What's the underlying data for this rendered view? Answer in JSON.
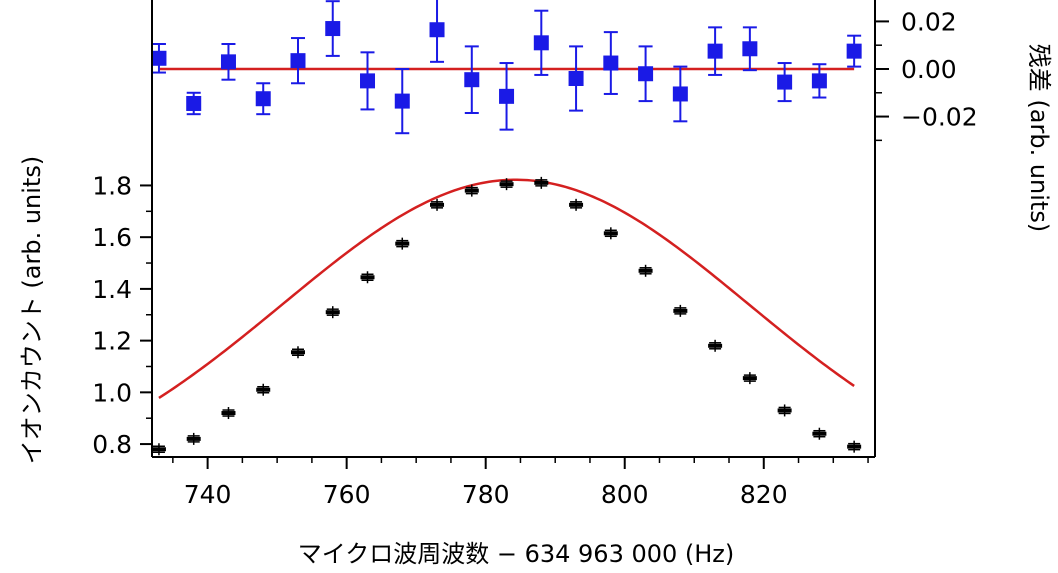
{
  "chart_data": [
    {
      "panel": "residual",
      "type": "scatter",
      "ylabel": "残差 (arb. units)",
      "ylim": [
        -0.037,
        0.029
      ],
      "yticks": [
        0.02,
        0.0,
        -0.02
      ],
      "ytick_labels": [
        "0.02",
        "0.00",
        "−0.02"
      ],
      "y_axis_side": "right",
      "x": [
        733,
        738,
        743,
        748,
        753,
        758,
        763,
        768,
        773,
        778,
        783,
        788,
        793,
        798,
        803,
        808,
        813,
        818,
        823,
        828,
        833
      ],
      "series": [
        {
          "marker": "square",
          "color": "#1a1ae6",
          "values": [
            0.0045,
            -0.0145,
            0.003,
            -0.0125,
            0.0035,
            0.017,
            -0.005,
            -0.0135,
            0.0165,
            -0.0045,
            -0.0115,
            0.011,
            -0.004,
            0.0025,
            -0.002,
            -0.0105,
            0.0075,
            0.0085,
            -0.0055,
            -0.005,
            0.0075
          ],
          "errors": [
            0.006,
            0.0045,
            0.0075,
            0.0065,
            0.0095,
            0.0115,
            0.012,
            0.0135,
            0.0135,
            0.014,
            0.014,
            0.0135,
            0.0135,
            0.013,
            0.0115,
            0.0115,
            0.01,
            0.009,
            0.008,
            0.007,
            0.0065
          ]
        },
        {
          "type": "line",
          "color": "#d42020",
          "x": [
            733,
            833
          ],
          "values": [
            0,
            0
          ]
        }
      ]
    },
    {
      "panel": "main",
      "type": "scatter",
      "xlabel": "マイクロ波周波数 − 634 963 000 (Hz)",
      "ylabel": "イオンカウント (arb. units)",
      "xlim": [
        732,
        836
      ],
      "ylim": [
        0.75,
        1.91
      ],
      "xticks": [
        740,
        760,
        780,
        800,
        820
      ],
      "xtick_labels": [
        "740",
        "760",
        "780",
        "800",
        "820"
      ],
      "yticks": [
        0.8,
        1.0,
        1.2,
        1.4,
        1.6,
        1.8
      ],
      "ytick_labels": [
        "0.8",
        "1.0",
        "1.2",
        "1.4",
        "1.6",
        "1.8"
      ],
      "x": [
        733,
        738,
        743,
        748,
        753,
        758,
        763,
        768,
        773,
        778,
        783,
        788,
        793,
        798,
        803,
        808,
        813,
        818,
        823,
        828,
        833
      ],
      "series": [
        {
          "marker": "cross-with-errorbar",
          "color": "#000000",
          "values": [
            0.78,
            0.82,
            0.92,
            1.01,
            1.155,
            1.31,
            1.445,
            1.575,
            1.725,
            1.78,
            1.805,
            1.81,
            1.725,
            1.615,
            1.47,
            1.315,
            1.18,
            1.055,
            0.93,
            0.84,
            0.79
          ]
        },
        {
          "type": "line",
          "fit": "gaussian",
          "color": "#d42020",
          "baseline": 0.6,
          "amplitude": 1.222,
          "center": 784.3,
          "sigma": 33.5
        }
      ]
    }
  ]
}
